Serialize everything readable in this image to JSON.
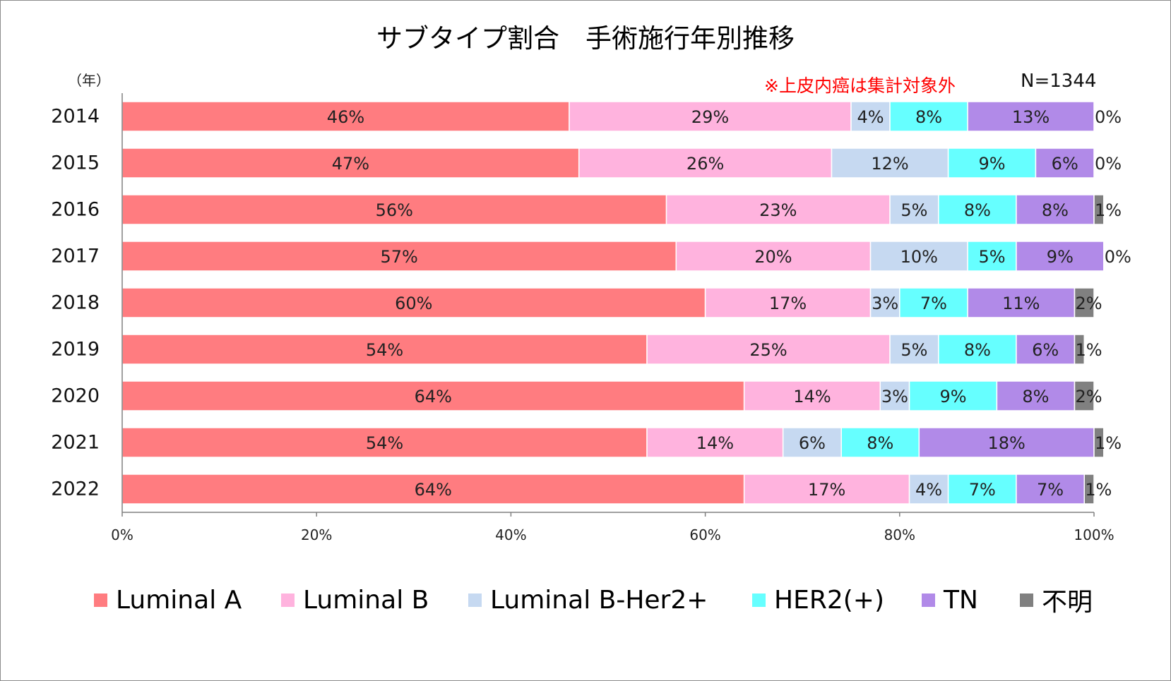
{
  "chart_data": {
    "type": "bar",
    "orientation": "horizontal",
    "stacked": "percent",
    "title": "サブタイプ割合　手術施行年別推移",
    "unit_label": "（年）",
    "note": "※上皮内癌は集計対象外",
    "n_label": "N=1344",
    "categories": [
      "2014",
      "2015",
      "2016",
      "2017",
      "2018",
      "2019",
      "2020",
      "2021",
      "2022"
    ],
    "series": [
      {
        "name": "Luminal A",
        "color": "#ff7c80",
        "values": [
          46,
          47,
          56,
          57,
          60,
          54,
          64,
          54,
          64
        ]
      },
      {
        "name": "Luminal B",
        "color": "#ffb3de",
        "values": [
          29,
          26,
          23,
          20,
          17,
          25,
          14,
          14,
          17
        ]
      },
      {
        "name": "Luminal B-Her2+",
        "color": "#c6d9f1",
        "values": [
          4,
          12,
          5,
          10,
          3,
          5,
          3,
          6,
          4
        ]
      },
      {
        "name": "HER2(+)",
        "color": "#66ffff",
        "values": [
          8,
          9,
          8,
          5,
          7,
          8,
          9,
          8,
          7
        ]
      },
      {
        "name": "TN",
        "color": "#b18ae8",
        "values": [
          13,
          6,
          8,
          9,
          11,
          6,
          8,
          18,
          7
        ]
      },
      {
        "name": "不明",
        "color": "#808080",
        "values": [
          0,
          0,
          1,
          0,
          2,
          1,
          2,
          1,
          1
        ]
      }
    ],
    "xlim": [
      0,
      100
    ],
    "xticks": [
      "0%",
      "20%",
      "40%",
      "60%",
      "80%",
      "100%"
    ],
    "grid": false,
    "legend_position": "bottom"
  }
}
